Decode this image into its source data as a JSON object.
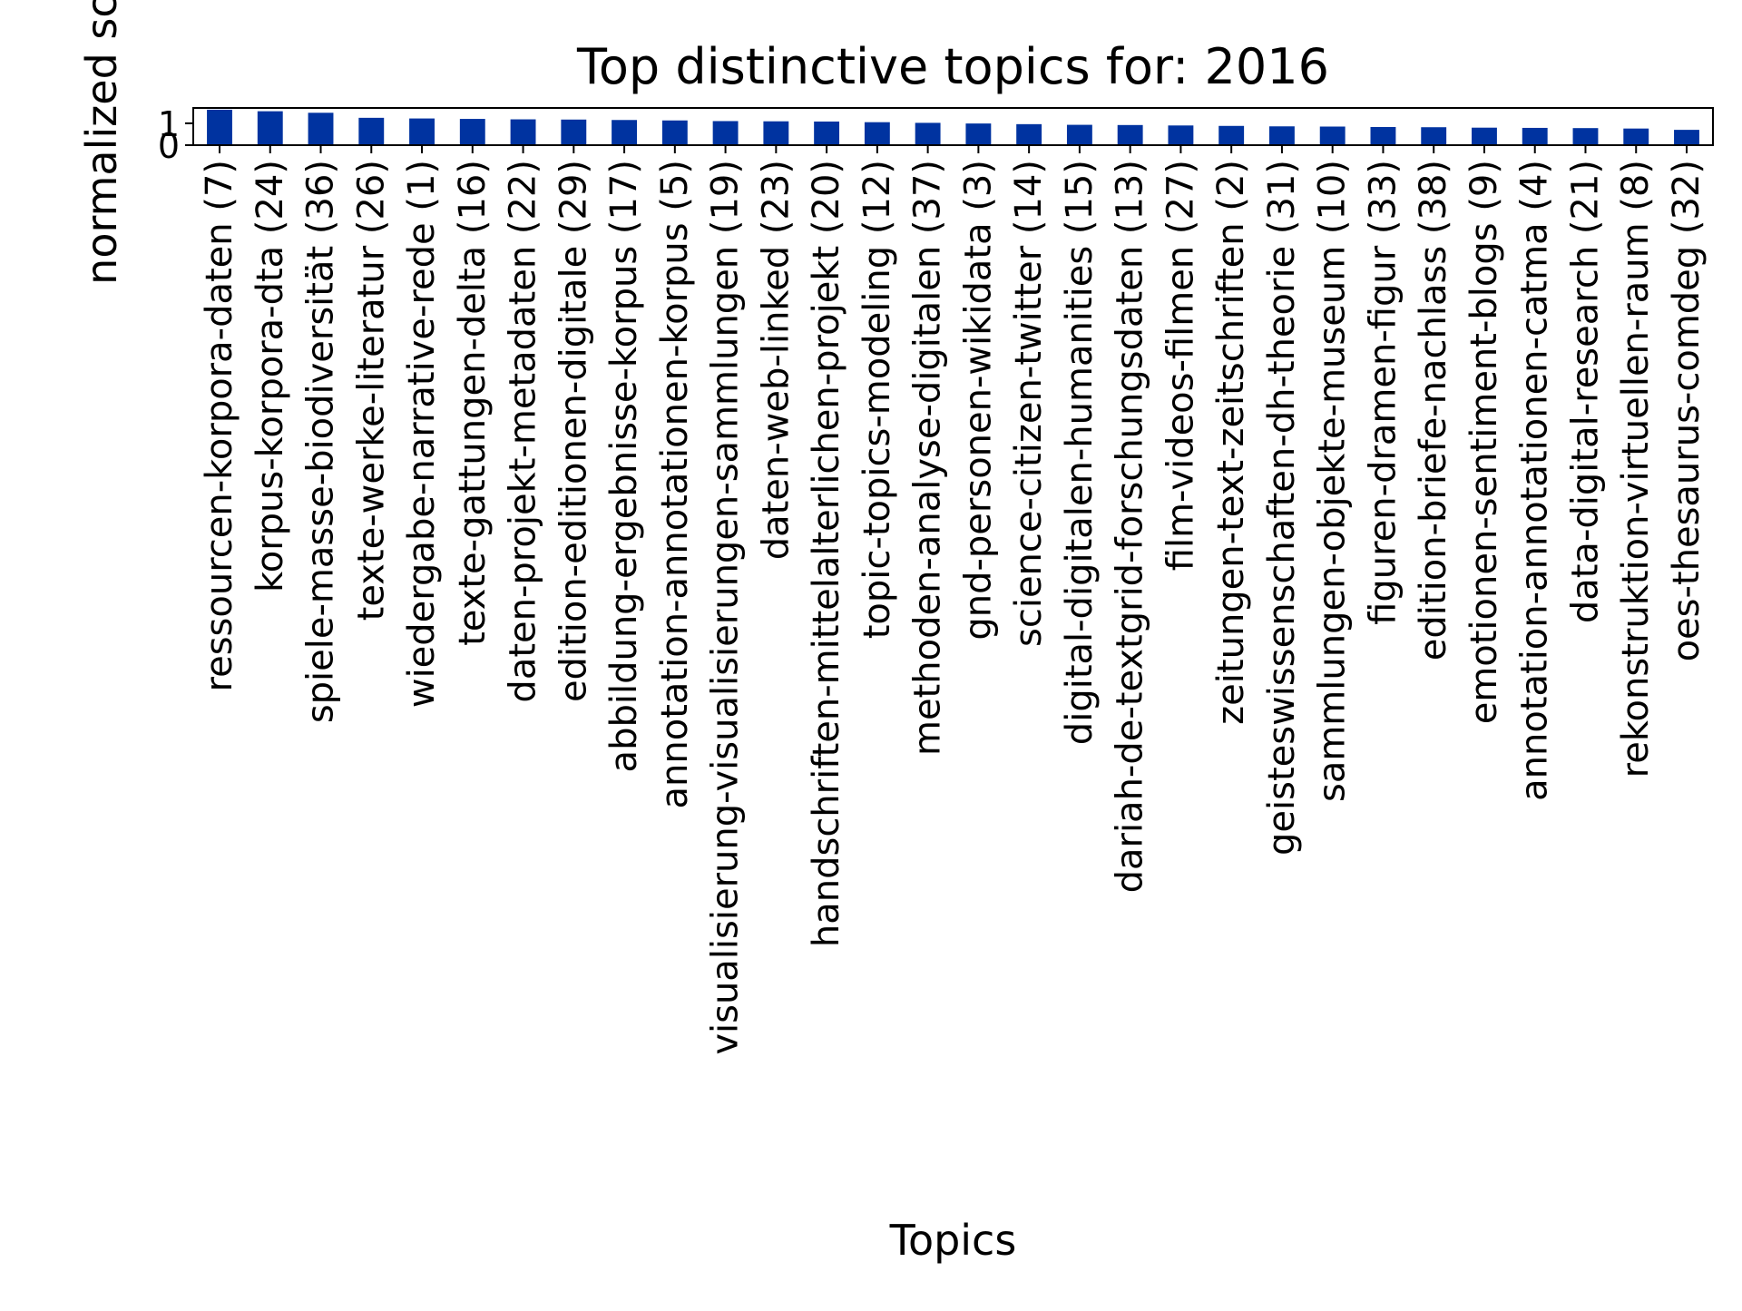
{
  "chart_data": {
    "type": "bar",
    "title": "Top distinctive topics for: 2016",
    "xlabel": "Topics",
    "ylabel": "normalized sco",
    "ylim": [
      0,
      1.7
    ],
    "yticks": [
      0,
      1
    ],
    "grid": false,
    "legend": "none",
    "bar_color": "#0033A0",
    "categories": [
      "ressourcen-korpora-daten (7)",
      "korpus-korpora-dta (24)",
      "spiele-masse-biodiversität (36)",
      "texte-werke-literatur (26)",
      "wiedergabe-narrative-rede (1)",
      "texte-gattungen-delta (16)",
      "daten-projekt-metadaten (22)",
      "edition-editionen-digitale (29)",
      "abbildung-ergebnisse-korpus (17)",
      "annotation-annotationen-korpus (5)",
      "visualisierung-visualisierungen-sammlungen (19)",
      "daten-web-linked (23)",
      "handschriften-mittelalterlichen-projekt (20)",
      "topic-topics-modeling (12)",
      "methoden-analyse-digitalen (37)",
      "gnd-personen-wikidata (3)",
      "science-citizen-twitter (14)",
      "digital-digitalen-humanities (15)",
      "dariah-de-textgrid-forschungsdaten (13)",
      "film-videos-filmen (27)",
      "zeitungen-text-zeitschriften (2)",
      "geisteswissenschaften-dh-theorie (31)",
      "sammlungen-objekte-museum (10)",
      "figuren-dramen-figur (33)",
      "edition-briefe-nachlass (38)",
      "emotionen-sentiment-blogs (9)",
      "annotation-annotationen-catma (4)",
      "data-digital-research (21)",
      "rekonstruktion-virtuellen-raum (8)",
      "oes-thesaurus-comdeg (32)"
    ],
    "values": [
      1.62,
      1.55,
      1.48,
      1.25,
      1.22,
      1.2,
      1.18,
      1.17,
      1.15,
      1.13,
      1.1,
      1.09,
      1.08,
      1.05,
      1.02,
      0.99,
      0.96,
      0.93,
      0.92,
      0.9,
      0.88,
      0.86,
      0.85,
      0.83,
      0.82,
      0.8,
      0.79,
      0.78,
      0.76,
      0.7
    ]
  }
}
